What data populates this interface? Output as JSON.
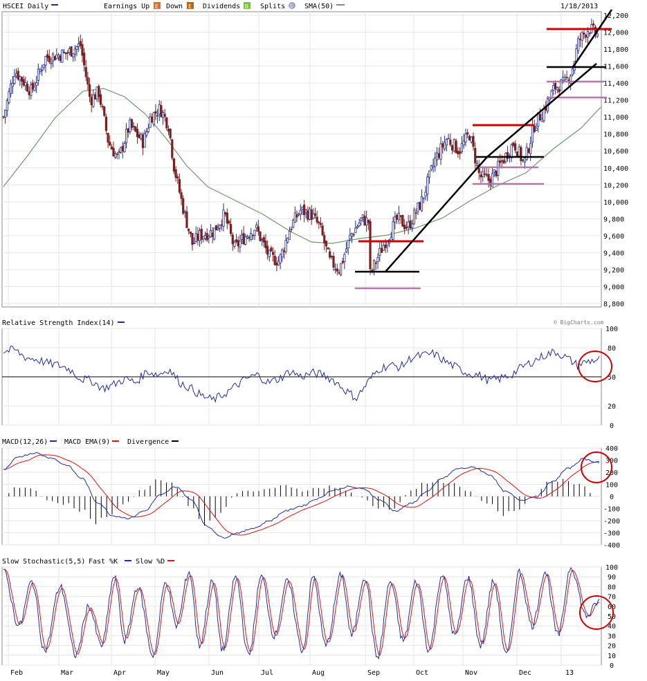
{
  "main": {
    "symbol_label": "HSCEI Daily",
    "legend": [
      {
        "label": "Earnings Up",
        "badge": "E",
        "color": "#8b5a2b"
      },
      {
        "label": "Down",
        "badge": "E",
        "color": "#c0392b"
      },
      {
        "label": "Dividends",
        "badge": "D",
        "color": "#7cc242"
      },
      {
        "label": "Splits",
        "badge": "S",
        "color": "#7f8fb5"
      },
      {
        "label": "SMA(50)",
        "color": "#6a9a6a"
      }
    ],
    "date": "1/18/2013",
    "yticks": [
      "12,200",
      "12,000",
      "11,800",
      "11,600",
      "11,400",
      "11,200",
      "11,000",
      "10,800",
      "10,600",
      "10,400",
      "10,200",
      "10,000",
      "9,800",
      "9,600",
      "9,400",
      "9,200",
      "9,000",
      "8,800"
    ],
    "credit": "© BigCharts.com"
  },
  "rsi": {
    "label": "Relative Strength Index(14)",
    "yticks": [
      "100",
      "80",
      "50",
      "20",
      "0"
    ]
  },
  "macd": {
    "label_a": "MACD(12,26)",
    "label_b": "MACD EMA(9)",
    "label_c": "Divergence",
    "yticks": [
      "400",
      "300",
      "200",
      "100",
      "0",
      "-100",
      "-200",
      "-300",
      "-400"
    ]
  },
  "stoch": {
    "label_a": "Slow Stochastic(5,5)",
    "label_b": "Fast %K",
    "label_c": "Slow %D",
    "yticks": [
      "100",
      "90",
      "80",
      "70",
      "60",
      "50",
      "40",
      "30",
      "20",
      "10",
      "0"
    ]
  },
  "xaxis": {
    "months": [
      "Feb",
      "Mar",
      "Apr",
      "May",
      "Jun",
      "Jul",
      "Aug",
      "Sep",
      "Oct",
      "Nov",
      "Dec",
      "13"
    ]
  },
  "colors": {
    "up_candle": "#1f2b8a",
    "down_candle": "#7b2020",
    "sma": "#6a9a6a",
    "indicator_blue": "#1c2d9c",
    "indicator_red": "#d11",
    "annotation_red": "#cc0000",
    "annotation_black": "#000000",
    "annotation_pink": "#b07aa8"
  },
  "chart_data": [
    {
      "type": "line",
      "title": "HSCEI Daily",
      "x": [
        "Feb",
        "Mar",
        "Apr",
        "May",
        "Jun",
        "Jul",
        "Aug",
        "Sep",
        "Oct",
        "Nov",
        "Dec",
        "13"
      ],
      "series": [
        {
          "name": "HSCEI",
          "values": [
            11500,
            11750,
            10600,
            11100,
            9550,
            9350,
            9650,
            9150,
            9900,
            10350,
            11300,
            12000
          ]
        },
        {
          "name": "SMA(50)",
          "values": [
            10600,
            11200,
            11300,
            10900,
            10000,
            9600,
            9500,
            9550,
            9700,
            10100,
            10400,
            11100
          ]
        }
      ],
      "ylim": [
        8800,
        12200
      ]
    },
    {
      "type": "line",
      "title": "Relative Strength Index(14)",
      "x": [
        "Feb",
        "Mar",
        "Apr",
        "May",
        "Jun",
        "Jul",
        "Aug",
        "Sep",
        "Oct",
        "Nov",
        "Dec",
        "13"
      ],
      "series": [
        {
          "name": "Relative Strength Index(14)",
          "values": [
            74,
            66,
            44,
            56,
            28,
            46,
            56,
            30,
            64,
            48,
            62,
            68
          ]
        }
      ],
      "ylim": [
        0,
        100
      ]
    },
    {
      "type": "line",
      "title": "MACD(12,26)",
      "x": [
        "Feb",
        "Mar",
        "Apr",
        "May",
        "Jun",
        "Jul",
        "Aug",
        "Sep",
        "Oct",
        "Nov",
        "Dec",
        "13"
      ],
      "series": [
        {
          "name": "MACD(12,26)",
          "values": [
            320,
            280,
            -180,
            80,
            -350,
            -150,
            100,
            -120,
            200,
            60,
            200,
            280
          ]
        },
        {
          "name": "MACD EMA(9)",
          "values": [
            300,
            260,
            -150,
            60,
            -300,
            -140,
            80,
            -100,
            160,
            80,
            170,
            290
          ]
        }
      ],
      "ylim": [
        -400,
        400
      ]
    },
    {
      "type": "line",
      "title": "Slow Stochastic(5,5)",
      "x": [
        "Feb",
        "Mar",
        "Apr",
        "May",
        "Jun",
        "Jul",
        "Aug",
        "Sep",
        "Oct",
        "Nov",
        "Dec",
        "13"
      ],
      "series": [
        {
          "name": "Fast %K",
          "values": [
            80,
            40,
            30,
            90,
            15,
            85,
            30,
            5,
            90,
            15,
            80,
            40
          ]
        },
        {
          "name": "Slow %D",
          "values": [
            75,
            45,
            35,
            80,
            20,
            80,
            35,
            10,
            85,
            20,
            75,
            50
          ]
        }
      ],
      "ylim": [
        0,
        100
      ]
    }
  ]
}
